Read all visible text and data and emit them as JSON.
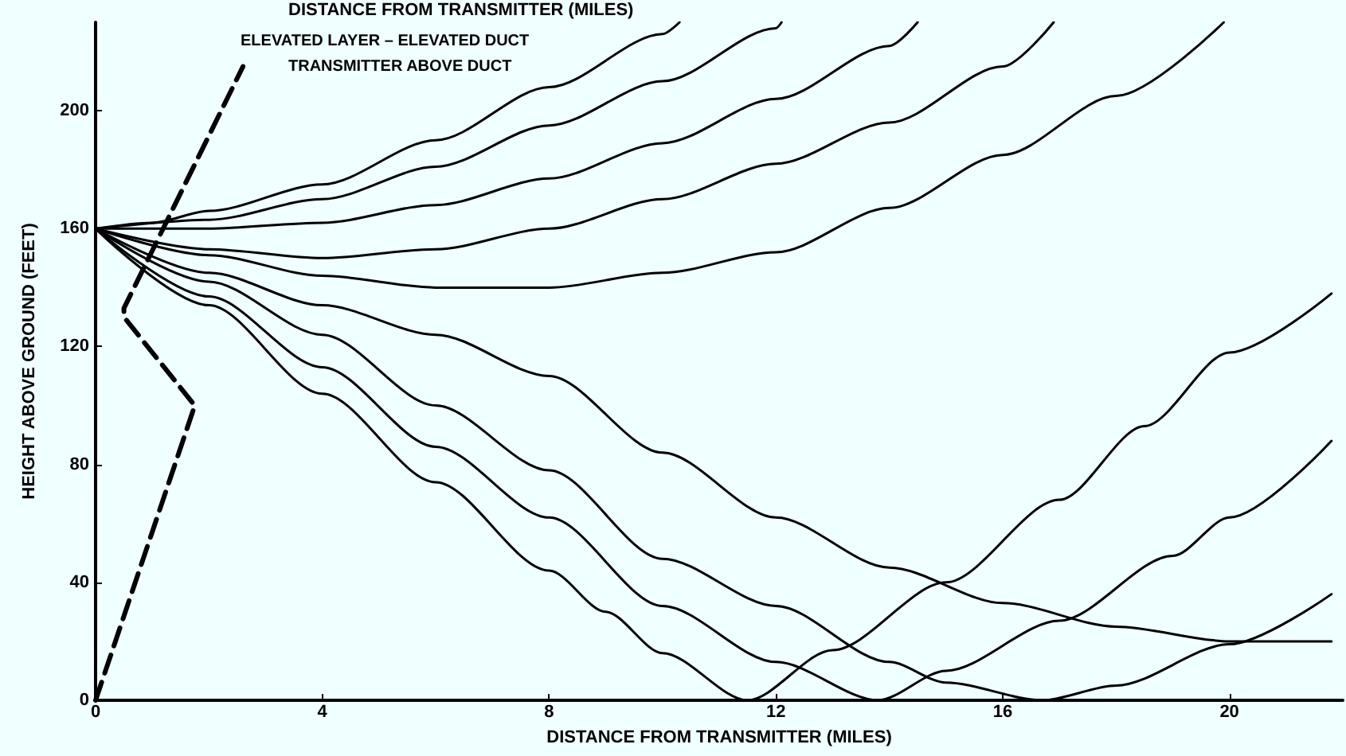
{
  "chart_data": {
    "type": "line",
    "xlabel": "DISTANCE FROM TRANSMITTER (MILES)",
    "ylabel": "HEIGHT ABOVE GROUND (FEET)",
    "annotations": [
      "DISTANCE FROM TRANSMITTER (MILES)",
      "ELEVATED LAYER – ELEVATED DUCT",
      "TRANSMITTER ABOVE DUCT"
    ],
    "xlim": [
      0,
      22
    ],
    "ylim": [
      0,
      230
    ],
    "xticks": [
      0,
      4,
      8,
      12,
      16,
      20
    ],
    "yticks": [
      0,
      40,
      80,
      120,
      160,
      200
    ],
    "grid": false,
    "marker": "none",
    "series": [
      {
        "color": "#000000",
        "x": [
          0,
          1,
          2,
          4,
          6,
          8,
          10,
          10.3
        ],
        "values": [
          160,
          162,
          166,
          175,
          190,
          208,
          226,
          230
        ]
      },
      {
        "color": "#000000",
        "x": [
          0,
          2,
          4,
          6,
          8,
          10,
          12,
          12.1
        ],
        "values": [
          160,
          163,
          170,
          181,
          195,
          210,
          228,
          230
        ]
      },
      {
        "color": "#000000",
        "x": [
          0,
          2,
          4,
          6,
          8,
          10,
          12,
          14,
          14.5
        ],
        "values": [
          160,
          160,
          162,
          168,
          177,
          189,
          204,
          222,
          230
        ]
      },
      {
        "color": "#000000",
        "x": [
          0,
          2,
          4,
          6,
          8,
          10,
          12,
          14,
          16,
          16.9
        ],
        "values": [
          160,
          153,
          150,
          153,
          160,
          170,
          182,
          196,
          215,
          230
        ]
      },
      {
        "color": "#000000",
        "x": [
          0,
          2,
          4,
          6,
          8,
          10,
          12,
          14,
          16,
          18,
          19.9
        ],
        "values": [
          160,
          151,
          144,
          140,
          140,
          145,
          152,
          167,
          185,
          205,
          230
        ]
      },
      {
        "color": "#000000",
        "x": [
          0,
          2,
          4,
          6,
          8,
          10,
          12,
          14,
          16,
          18,
          20,
          21.8
        ],
        "values": [
          160,
          145,
          134,
          124,
          110,
          84,
          62,
          45,
          33,
          25,
          20,
          20
        ]
      },
      {
        "color": "#000000",
        "x": [
          0,
          2,
          4,
          6,
          8,
          10,
          12,
          14,
          15,
          16.7,
          18,
          20,
          21.8
        ],
        "values": [
          160,
          142,
          124,
          100,
          78,
          48,
          32,
          13,
          6,
          0,
          5,
          19,
          36
        ]
      },
      {
        "color": "#000000",
        "x": [
          0,
          2,
          4,
          6,
          8,
          10,
          12,
          13.8,
          15,
          17,
          19,
          20,
          21.8
        ],
        "values": [
          160,
          137,
          113,
          86,
          62,
          32,
          13,
          0,
          10,
          27,
          49,
          62,
          88
        ]
      },
      {
        "color": "#000000",
        "x": [
          0,
          2,
          4,
          6,
          8,
          9,
          10,
          11.5,
          13,
          15,
          17,
          18.5,
          20,
          21.8
        ],
        "values": [
          160,
          134,
          104,
          74,
          44,
          30,
          16,
          0,
          17,
          40,
          68,
          93,
          118,
          138
        ]
      },
      {
        "color": "#000000",
        "line_style": "dashed",
        "x": [
          0,
          1.75,
          0.5,
          0.5,
          2.6
        ],
        "values": [
          0,
          100,
          130,
          133,
          215
        ]
      }
    ]
  }
}
